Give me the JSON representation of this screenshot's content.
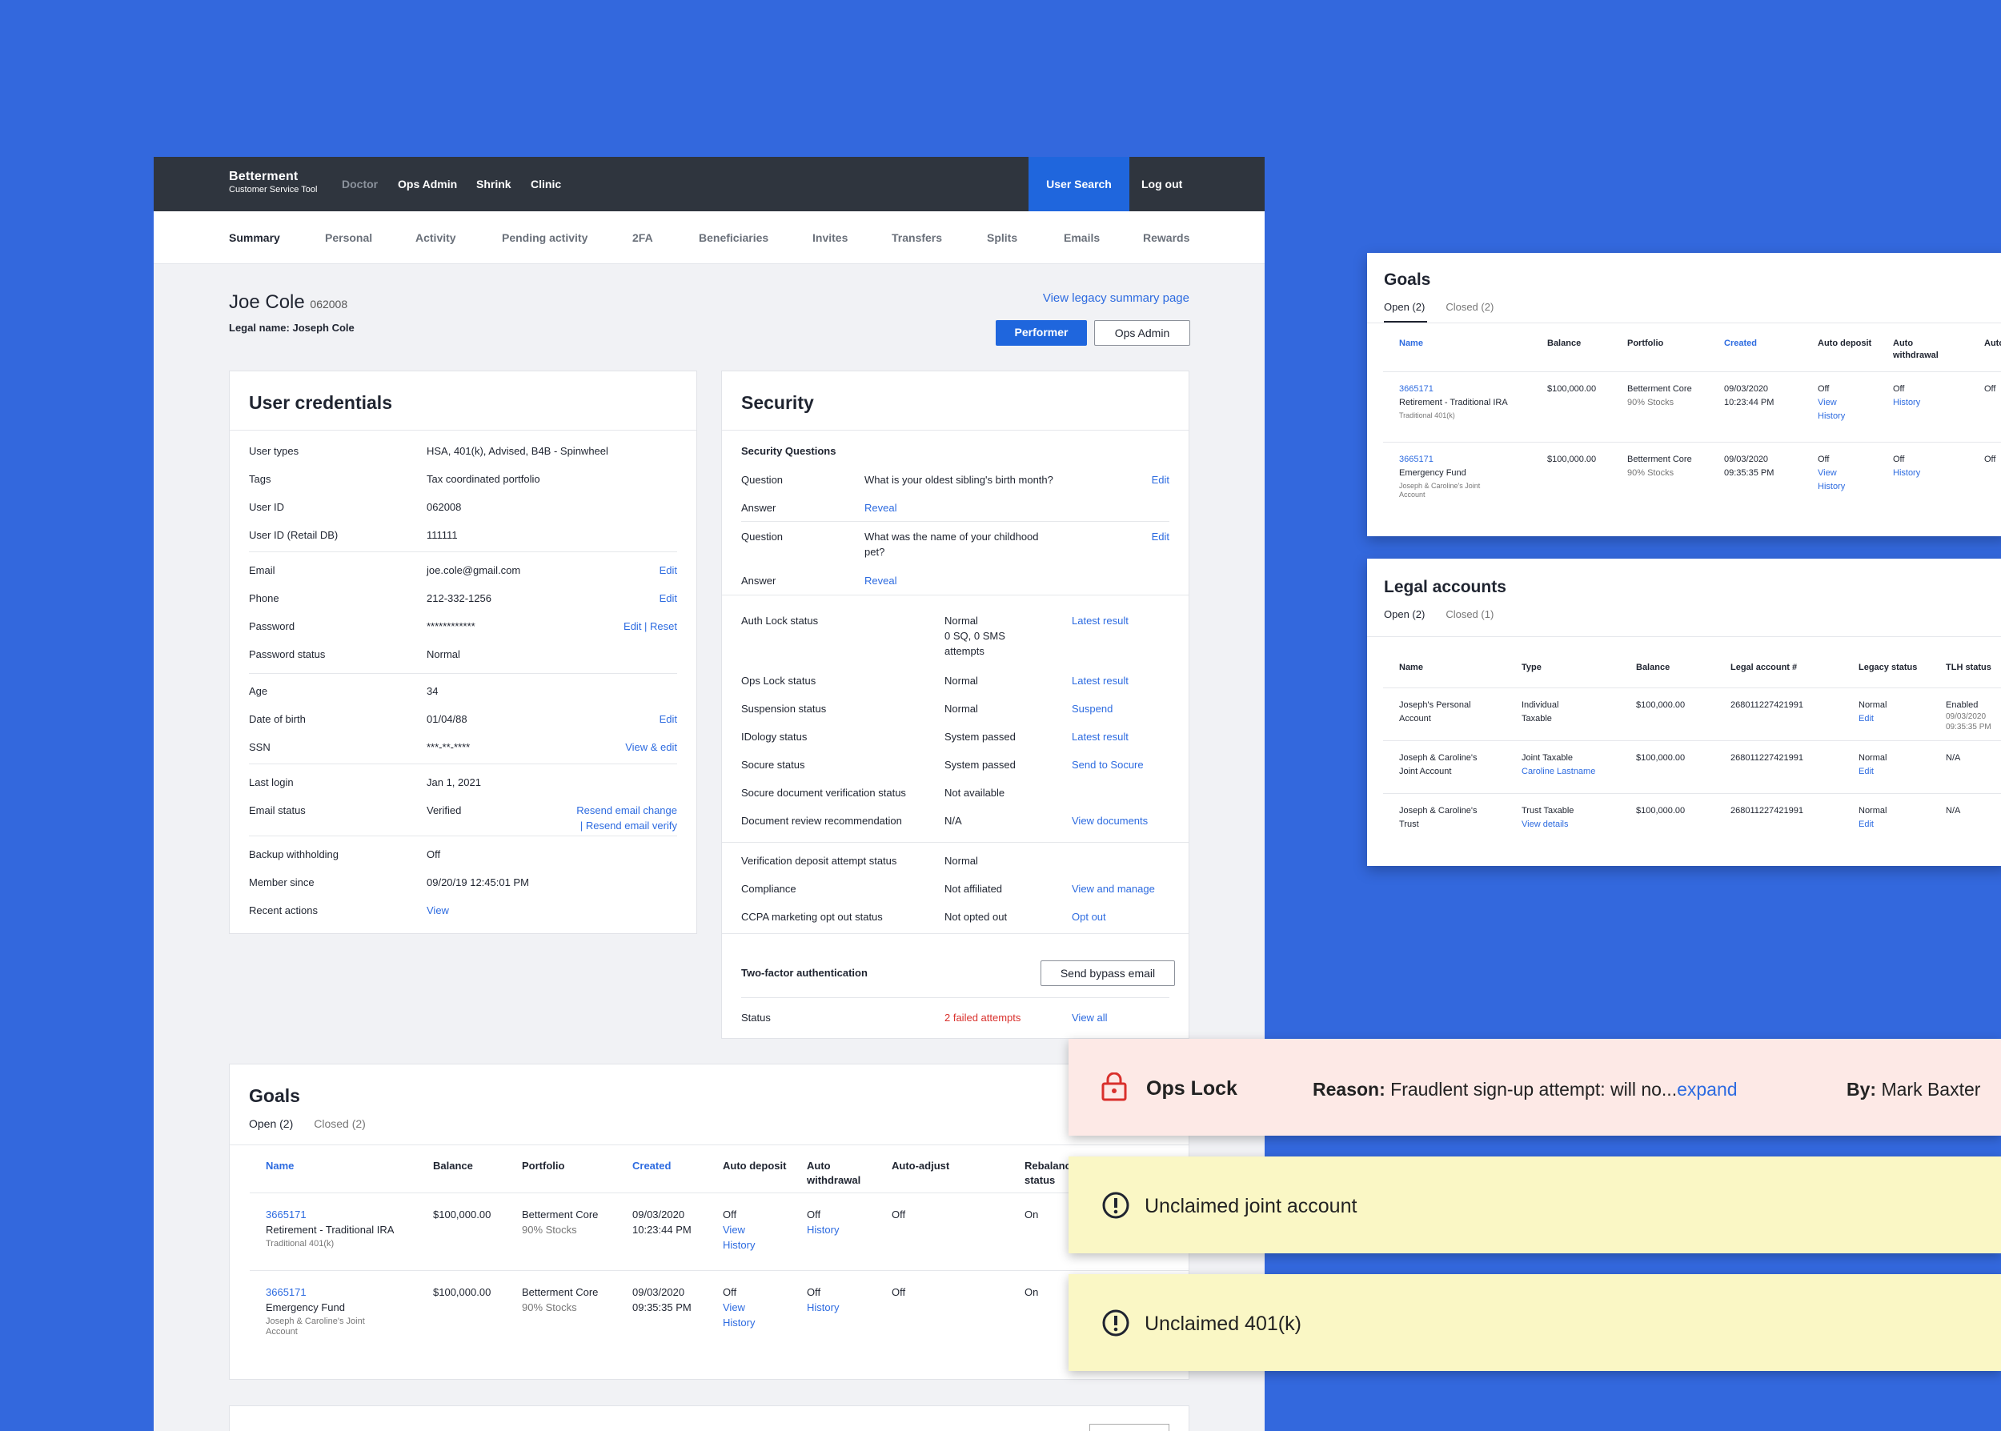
{
  "topbar": {
    "brand": "Betterment",
    "brand_sub": "Customer Service Tool",
    "nav": [
      "Doctor",
      "Ops Admin",
      "Shrink",
      "Clinic"
    ],
    "user_search": "User Search",
    "log_out": "Log out"
  },
  "subnav": [
    "Summary",
    "Personal",
    "Activity",
    "Pending activity",
    "2FA",
    "Beneficiaries",
    "Invites",
    "Transfers",
    "Splits",
    "Emails",
    "Rewards"
  ],
  "user": {
    "name": "Joe Cole",
    "id": "062008",
    "legal": "Legal name: Joseph  Cole",
    "legacy_link": "View legacy summary page",
    "btn_performer": "Performer",
    "btn_opsadmin": "Ops Admin"
  },
  "credentials": {
    "title": "User credentials",
    "rows": [
      {
        "label": "User types",
        "value": "HSA, 401(k), Advised, B4B - Spinwheel",
        "action": ""
      },
      {
        "label": "Tags",
        "value": "Tax coordinated portfolio",
        "action": ""
      },
      {
        "label": "User ID",
        "value": "062008",
        "action": ""
      },
      {
        "label": "User ID (Retail DB)",
        "value": "111111",
        "action": ""
      },
      {
        "label": "Email",
        "value": "joe.cole@gmail.com",
        "action": "Edit"
      },
      {
        "label": "Phone",
        "value": "212-332-1256",
        "action": "Edit"
      },
      {
        "label": "Password",
        "value": "************",
        "action": "Edit | Reset"
      },
      {
        "label": "Password status",
        "value": "Normal",
        "action": ""
      },
      {
        "label": "Age",
        "value": "34",
        "action": ""
      },
      {
        "label": "Date of birth",
        "value": "01/04/88",
        "action": "Edit"
      },
      {
        "label": "SSN",
        "value": "***-**-****",
        "action": "View & edit"
      },
      {
        "label": "Last login",
        "value": "Jan 1, 2021",
        "action": ""
      },
      {
        "label": "Email status",
        "value": "Verified",
        "action": "Resend email change",
        "action2": "| Resend email verify"
      },
      {
        "label": "Backup withholding",
        "value": "Off",
        "action": ""
      },
      {
        "label": "Member since",
        "value": "09/20/19  12:45:01 PM",
        "action": ""
      },
      {
        "label": "Recent actions",
        "value": "View",
        "action": ""
      }
    ]
  },
  "security": {
    "title": "Security",
    "sq_title": "Security Questions",
    "q1": {
      "label": "Question",
      "value": "What is your oldest sibling's birth month?",
      "action": "Edit"
    },
    "a1": {
      "label": "Answer",
      "value": "Reveal"
    },
    "q2": {
      "label": "Question",
      "value": "What was the name of your childhood",
      "value2": "pet?",
      "action": "Edit"
    },
    "a2": {
      "label": "Answer",
      "value": "Reveal"
    },
    "rows": [
      {
        "label": "Auth Lock status",
        "value": "Normal",
        "value2": "0 SQ, 0 SMS",
        "value3": "attempts",
        "action": "Latest result"
      },
      {
        "label": "Ops Lock status",
        "value": "Normal",
        "action": "Latest result"
      },
      {
        "label": "Suspension status",
        "value": "Normal",
        "action": "Suspend"
      },
      {
        "label": "IDology status",
        "value": "System passed",
        "action": "Latest result"
      },
      {
        "label": "Socure status",
        "value": "System passed",
        "action": "Send to Socure"
      },
      {
        "label": "Socure document verification status",
        "value": "Not available",
        "action": ""
      },
      {
        "label": "Document review recommendation",
        "value": "N/A",
        "action": "View documents"
      },
      {
        "label": "Verification deposit attempt status",
        "value": "Normal",
        "action": ""
      },
      {
        "label": "Compliance",
        "value": "Not affiliated",
        "action": "View and manage"
      },
      {
        "label": "CCPA marketing opt out status",
        "value": "Not opted out",
        "action": "Opt out"
      }
    ],
    "tfa_label": "Two-factor authentication",
    "bypass_btn": "Send bypass email",
    "status_label": "Status",
    "status_value": "2 failed attempts",
    "status_action": "View all"
  },
  "goals": {
    "title": "Goals",
    "tab_open": "Open (2)",
    "tab_closed": "Closed (2)",
    "headers": [
      "Name",
      "Balance",
      "Portfolio",
      "Created",
      "Auto deposit",
      "Auto withdrawal",
      "Auto-adjust",
      "Rebalance status"
    ],
    "rows": [
      {
        "id": "3665171",
        "name": "Retirement - Traditional IRA",
        "sub": "Traditional 401(k)",
        "sub2": "",
        "balance": "$100,000.00",
        "portfolio": "Betterment Core",
        "pstocks": "90% Stocks",
        "date": "09/03/2020",
        "time": "10:23:44 PM",
        "ad": "Off",
        "ad_view": "View",
        "ad_hist": "History",
        "aw": "Off",
        "aw_hist": "History",
        "aa": "Off",
        "rb": "On"
      },
      {
        "id": "3665171",
        "name": "Emergency Fund",
        "sub": "Joseph & Caroline's Joint",
        "sub2": "Account",
        "balance": "$100,000.00",
        "portfolio": "Betterment Core",
        "pstocks": "90% Stocks",
        "date": "09/03/2020",
        "time": "09:35:35 PM",
        "ad": "Off",
        "ad_view": "View",
        "ad_hist": "History",
        "aw": "Off",
        "aw_hist": "History",
        "aa": "Off",
        "rb": "On"
      }
    ]
  },
  "legal": {
    "title": "Legal accounts",
    "tab_open": "Open (2)",
    "tab_closed": "Closed (1)",
    "headers": [
      "Name",
      "Type",
      "Balance",
      "Legal account #",
      "Legacy status",
      "TLH status"
    ],
    "rows": [
      {
        "n1": "Joseph's Personal",
        "n2": "Account",
        "t1": "Individual",
        "t2": "Taxable",
        "t2link": "",
        "bal": "$100,000.00",
        "acct": "268011227421991",
        "ls": "Normal",
        "ls_edit": "Edit",
        "tlh": "Enabled",
        "tlh2": "09/03/2020",
        "tlh3": "09:35:35 PM"
      },
      {
        "n1": "Joseph & Caroline's",
        "n2": "Joint Account",
        "t1": "Joint Taxable",
        "t2": "",
        "t2link": "Caroline Lastname",
        "bal": "$100,000.00",
        "acct": "268011227421991",
        "ls": "Normal",
        "ls_edit": "Edit",
        "tlh": "N/A",
        "tlh2": "",
        "tlh3": ""
      },
      {
        "n1": "Joseph & Caroline's",
        "n2": "Trust",
        "t1": "Trust Taxable",
        "t2": "",
        "t2link": "View details",
        "bal": "$100,000.00",
        "acct": "268011227421991",
        "ls": "Normal",
        "ls_edit": "Edit",
        "tlh": "N/A",
        "tlh2": "",
        "tlh3": ""
      }
    ]
  },
  "alerts": {
    "opslock": {
      "title": "Ops Lock",
      "reason_label": "Reason:",
      "reason": "Fraudlent sign-up attempt: will no...",
      "expand": "expand",
      "by_label": "By:",
      "by": "Mark Baxter"
    },
    "joint": "Unclaimed joint account",
    "k401": "Unclaimed 401(k)"
  },
  "colors": {
    "background": "#3368dd",
    "accent": "#1f66dd",
    "link": "#2d6be0",
    "topbar": "#2f353e",
    "ops_lock_bg": "#fde9e6",
    "warning_bg": "#faf7c5",
    "error": "#d9302c"
  }
}
